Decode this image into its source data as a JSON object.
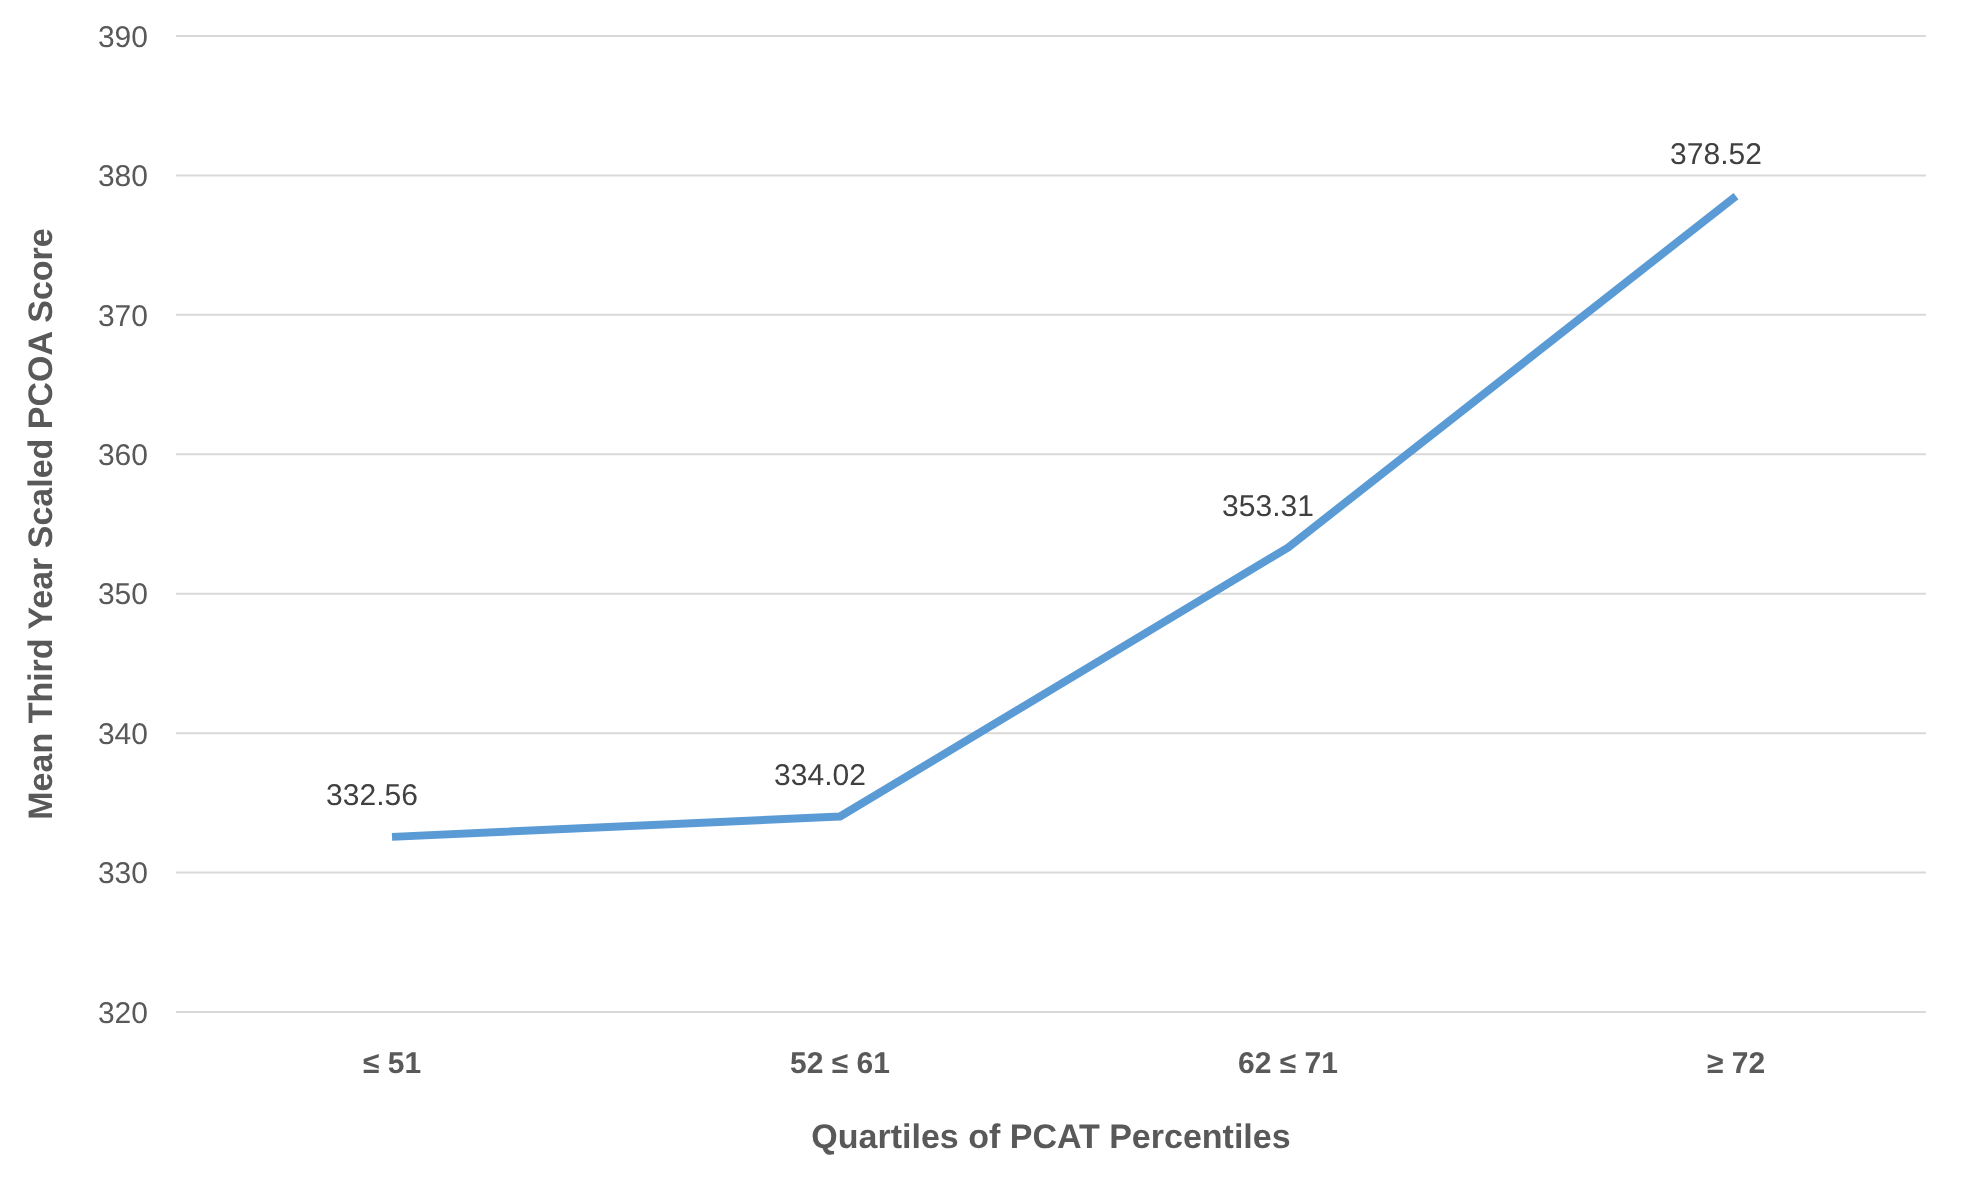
{
  "chart_data": {
    "type": "line",
    "xlabel": "Quartiles of PCAT Percentiles",
    "ylabel": "Mean Third Year  Scaled PCOA Score",
    "categories": [
      "≤ 51",
      "52 ≤ 61",
      "62 ≤ 71",
      "≥ 72"
    ],
    "series": [
      {
        "color": "#5b9bd5",
        "values": [
          332.56,
          334.02,
          353.31,
          378.52
        ]
      }
    ],
    "ylim": [
      320,
      390
    ],
    "yticks": [
      320,
      330,
      340,
      350,
      360,
      370,
      380,
      390
    ],
    "grid": "y",
    "data_labels": true,
    "legend": false,
    "marker": "none",
    "line_style": "solid"
  }
}
